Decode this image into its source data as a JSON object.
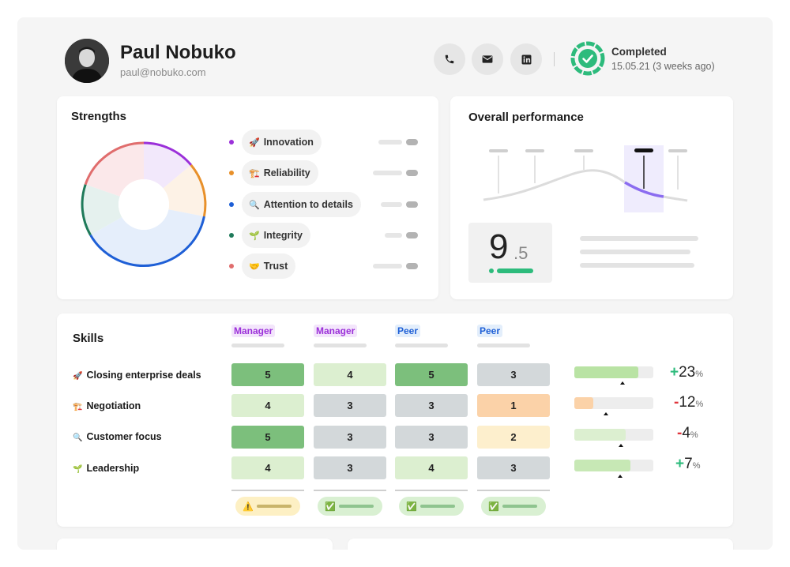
{
  "profile": {
    "name": "Paul Nobuko",
    "email": "paul@nobuko.com",
    "status_title": "Completed",
    "status_date": "15.05.21 (3 weeks ago)"
  },
  "contact_icons": [
    "phone-icon",
    "mail-icon",
    "linkedin-icon"
  ],
  "strengths": {
    "title": "Strengths",
    "items": [
      {
        "label": "Innovation",
        "icon": "🚀",
        "color": "#9b30d9"
      },
      {
        "label": "Reliability",
        "icon": "🏗️",
        "color": "#e8902a"
      },
      {
        "label": "Attention to details",
        "icon": "🔍",
        "color": "#1e5fd6"
      },
      {
        "label": "Integrity",
        "icon": "🌱",
        "color": "#1f7a5a"
      },
      {
        "label": "Trust",
        "icon": "🤝",
        "color": "#e06d6d"
      }
    ]
  },
  "performance": {
    "title": "Overall performance",
    "score_main": "9",
    "score_decimal": ".5",
    "accent": "#8b6cf0"
  },
  "skills": {
    "title": "Skills",
    "columns": [
      {
        "label": "Manager",
        "type": "manager"
      },
      {
        "label": "Manager",
        "type": "manager"
      },
      {
        "label": "Peer",
        "type": "peer"
      },
      {
        "label": "Peer",
        "type": "peer"
      }
    ],
    "rows": [
      {
        "label": "Closing enterprise deals",
        "icon": "🚀",
        "scores": [
          "5",
          "4",
          "5",
          "3"
        ],
        "progress": 0.81,
        "sign": "+",
        "delta": "23",
        "unit": "%"
      },
      {
        "label": "Negotiation",
        "icon": "🏗️",
        "scores": [
          "4",
          "3",
          "3",
          "1"
        ],
        "progress": 0.24,
        "sign": "-",
        "delta": "12",
        "unit": "%"
      },
      {
        "label": "Customer focus",
        "icon": "🔍",
        "scores": [
          "5",
          "3",
          "3",
          "2"
        ],
        "progress": 0.65,
        "sign": "-",
        "delta": "4",
        "unit": "%"
      },
      {
        "label": "Leadership",
        "icon": "🌱",
        "scores": [
          "4",
          "3",
          "4",
          "3"
        ],
        "progress": 0.71,
        "sign": "+",
        "delta": "7",
        "unit": "%"
      }
    ],
    "footer_chips": [
      "warning",
      "check",
      "check",
      "check"
    ]
  }
}
